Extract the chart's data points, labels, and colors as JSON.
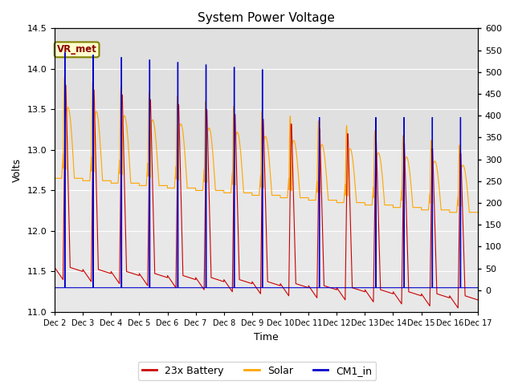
{
  "title": "System Power Voltage",
  "xlabel": "Time",
  "ylabel": "Volts",
  "ylim_left": [
    11.0,
    14.5
  ],
  "ylim_right": [
    -50,
    600
  ],
  "yticks_left": [
    11.0,
    11.5,
    12.0,
    12.5,
    13.0,
    13.5,
    14.0,
    14.5
  ],
  "yticks_right": [
    0,
    50,
    100,
    150,
    200,
    250,
    300,
    350,
    400,
    450,
    500,
    550,
    600
  ],
  "shade_ymin": 13.0,
  "shade_ymax": 14.5,
  "shade_color": "#e0e0e0",
  "vr_met_text": "VR_met",
  "line_battery_color": "#cc0000",
  "line_solar_color": "#ffa500",
  "line_cm1_color": "#0000cc",
  "legend_labels": [
    "23x Battery",
    "Solar",
    "CM1_in"
  ],
  "background_color": "#e8e8e8",
  "grid_color": "#ffffff",
  "title_fontsize": 11,
  "axis_fontsize": 9,
  "tick_fontsize": 8,
  "n_days": 15,
  "xlim": [
    0,
    15
  ]
}
